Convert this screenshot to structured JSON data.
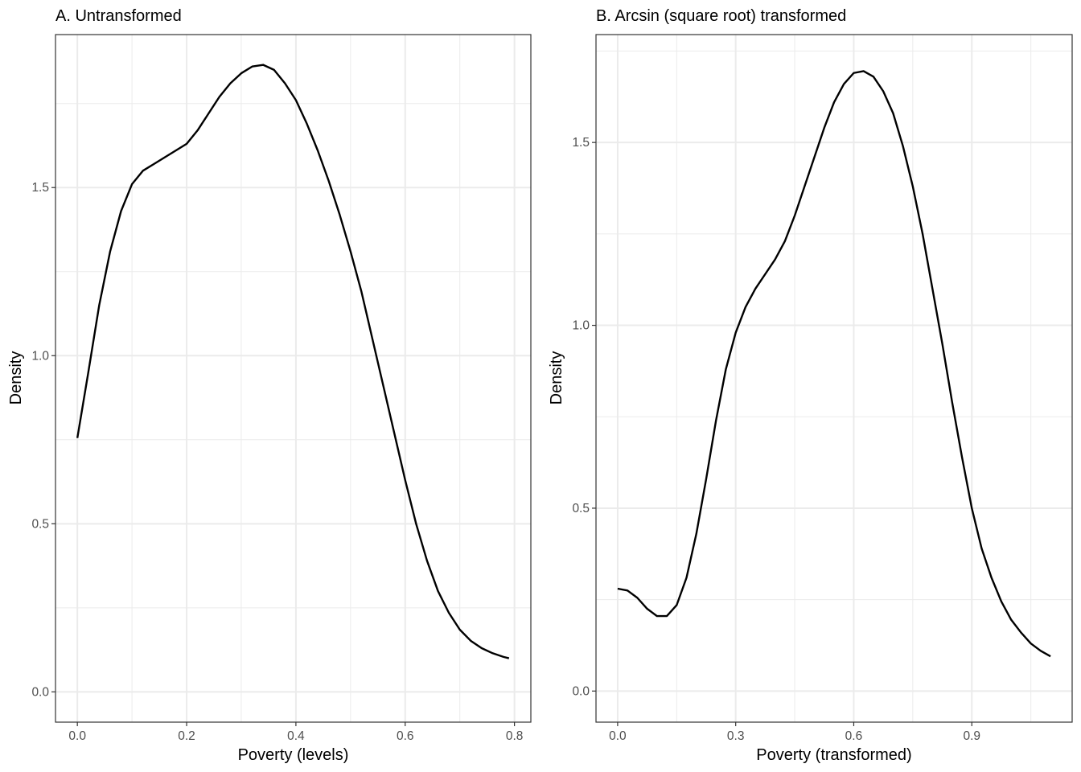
{
  "chart_data": [
    {
      "type": "line",
      "title": "A. Untransformed",
      "xlabel": "Poverty (levels)",
      "ylabel": "Density",
      "xlim": [
        -0.04,
        0.83
      ],
      "ylim": [
        -0.09,
        1.955
      ],
      "xticks": [
        0.0,
        0.2,
        0.4,
        0.6,
        0.8
      ],
      "xtick_labels": [
        "0.0",
        "0.2",
        "0.4",
        "0.6",
        "0.8"
      ],
      "yticks": [
        0.0,
        0.5,
        1.0,
        1.5
      ],
      "ytick_labels": [
        "0.0",
        "0.5",
        "1.0",
        "1.5"
      ],
      "grid": true,
      "series": [
        {
          "x": [
            0.0,
            0.02,
            0.04,
            0.06,
            0.08,
            0.1,
            0.12,
            0.14,
            0.16,
            0.18,
            0.2,
            0.22,
            0.24,
            0.26,
            0.28,
            0.3,
            0.32,
            0.34,
            0.36,
            0.38,
            0.4,
            0.42,
            0.44,
            0.46,
            0.48,
            0.5,
            0.52,
            0.54,
            0.56,
            0.58,
            0.6,
            0.62,
            0.64,
            0.66,
            0.68,
            0.7,
            0.72,
            0.74,
            0.76,
            0.78,
            0.79
          ],
          "values": [
            0.755,
            0.95,
            1.15,
            1.31,
            1.43,
            1.51,
            1.55,
            1.57,
            1.59,
            1.61,
            1.63,
            1.67,
            1.72,
            1.77,
            1.81,
            1.84,
            1.86,
            1.865,
            1.85,
            1.81,
            1.76,
            1.69,
            1.61,
            1.52,
            1.42,
            1.31,
            1.19,
            1.05,
            0.91,
            0.77,
            0.63,
            0.5,
            0.39,
            0.3,
            0.235,
            0.185,
            0.152,
            0.13,
            0.115,
            0.104,
            0.1
          ]
        }
      ]
    },
    {
      "type": "line",
      "title": "B. Arcsin (square root) transformed",
      "xlabel": "Poverty (transformed)",
      "ylabel": "Density",
      "xlim": [
        -0.055,
        1.155
      ],
      "ylim": [
        -0.085,
        1.795
      ],
      "xticks": [
        0.0,
        0.3,
        0.6,
        0.9
      ],
      "xtick_labels": [
        "0.0",
        "0.3",
        "0.6",
        "0.9"
      ],
      "yticks": [
        0.0,
        0.5,
        1.0,
        1.5
      ],
      "ytick_labels": [
        "0.0",
        "0.5",
        "1.0",
        "1.5"
      ],
      "grid": true,
      "series": [
        {
          "x": [
            0.0,
            0.025,
            0.05,
            0.075,
            0.1,
            0.125,
            0.15,
            0.175,
            0.2,
            0.225,
            0.25,
            0.275,
            0.3,
            0.325,
            0.35,
            0.375,
            0.4,
            0.425,
            0.45,
            0.475,
            0.5,
            0.525,
            0.55,
            0.575,
            0.6,
            0.625,
            0.65,
            0.675,
            0.7,
            0.725,
            0.75,
            0.775,
            0.8,
            0.825,
            0.85,
            0.875,
            0.9,
            0.925,
            0.95,
            0.975,
            1.0,
            1.025,
            1.05,
            1.075,
            1.1
          ],
          "values": [
            0.28,
            0.275,
            0.255,
            0.225,
            0.205,
            0.205,
            0.235,
            0.31,
            0.43,
            0.58,
            0.74,
            0.88,
            0.98,
            1.05,
            1.1,
            1.14,
            1.18,
            1.23,
            1.3,
            1.38,
            1.46,
            1.54,
            1.61,
            1.66,
            1.69,
            1.695,
            1.68,
            1.64,
            1.58,
            1.49,
            1.38,
            1.25,
            1.1,
            0.95,
            0.79,
            0.64,
            0.5,
            0.39,
            0.31,
            0.245,
            0.195,
            0.16,
            0.13,
            0.11,
            0.095
          ]
        }
      ]
    }
  ]
}
